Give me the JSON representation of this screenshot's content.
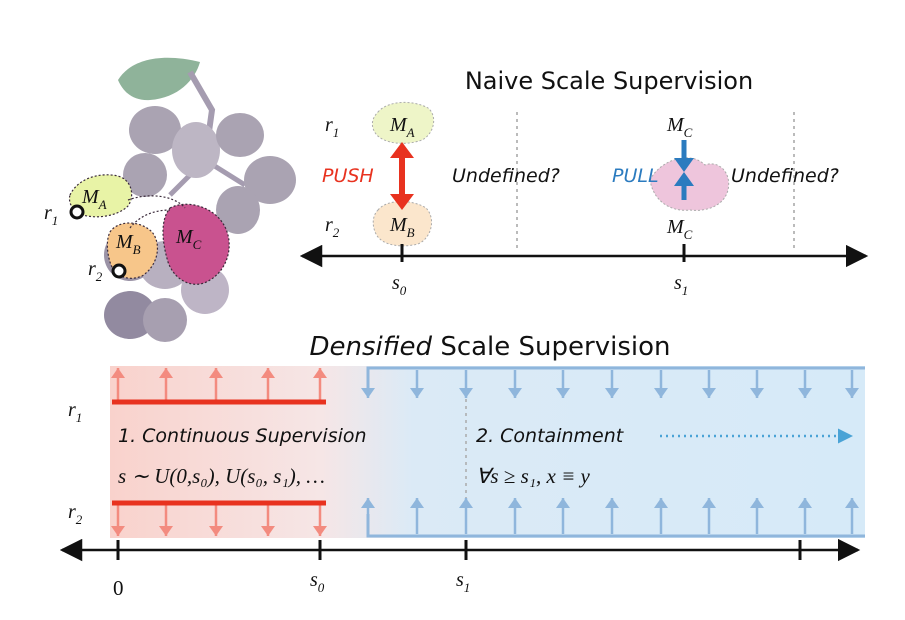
{
  "colors": {
    "push_red": "#e8321f",
    "pull_blue": "#2b7bbf",
    "light_red": "#f38b7f",
    "light_blue": "#8fb6dc",
    "grape": "#aaa3b2",
    "grape_dark": "#928aa0",
    "leaf": "#8fb39a",
    "mask_a": "#e8f3a6",
    "mask_b": "#f7c68a",
    "mask_c": "#c9528f"
  },
  "grape": {
    "r1": "r",
    "r1_sub": "1",
    "r2": "r",
    "r2_sub": "2",
    "mask_a": "M",
    "mask_a_sub": "A",
    "mask_b": "M",
    "mask_b_sub": "B",
    "mask_c": "M",
    "mask_c_sub": "C"
  },
  "naive": {
    "title": "Naive Scale Supervision",
    "r1": "r",
    "r1_sub": "1",
    "r2": "r",
    "r2_sub": "2",
    "ma": "M",
    "ma_sub": "A",
    "mb": "M",
    "mb_sub": "B",
    "mc_top": "M",
    "mc_top_sub": "C",
    "mc_bottom": "M",
    "mc_bottom_sub": "C",
    "push": "PUSH",
    "pull": "PULL",
    "undefined_left": "Undefined?",
    "undefined_right": "Undefined?",
    "s0": "s",
    "s0_sub": "0",
    "s1": "s",
    "s1_sub": "1"
  },
  "dense": {
    "title_italic": "Densified",
    "title_rest": " Scale Supervision",
    "r1": "r",
    "r1_sub": "1",
    "r2": "r",
    "r2_sub": "2",
    "label1": "1. Continuous Supervision",
    "label2": "2. Containment",
    "formula1": "s ∼ U(0,s₀), U(s₀, s₁), …",
    "formula2": "∀s ≥ s₁, x ≡ y",
    "tick0": "0",
    "s0": "s",
    "s0_sub": "0",
    "s1": "s",
    "s1_sub": "1"
  }
}
